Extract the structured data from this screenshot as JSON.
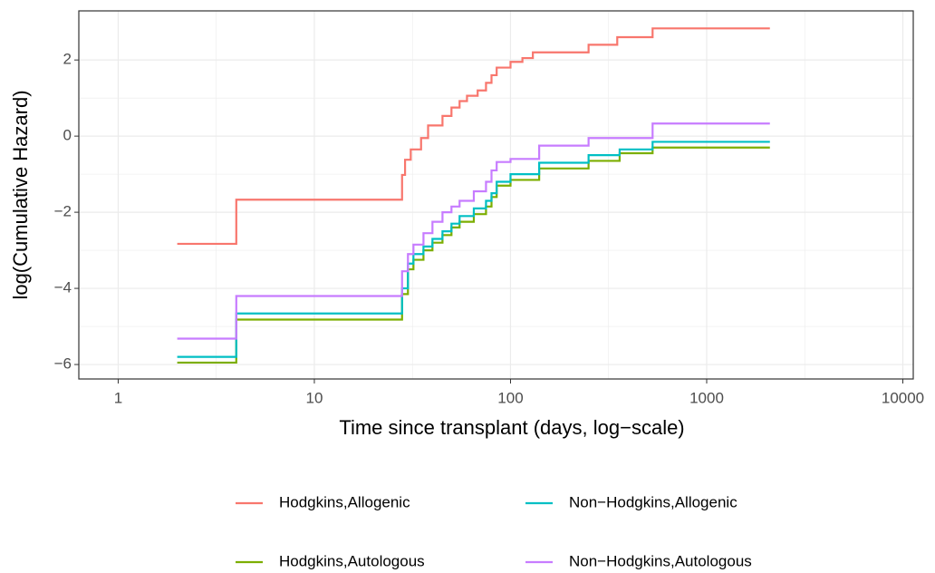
{
  "chart_data": {
    "type": "step",
    "x_label": "Time since transplant (days, log−scale)",
    "y_label": "log(Cumulative Hazard)",
    "xlog": true,
    "grid": true,
    "legend_position": "bottom",
    "xlim": [
      0.63,
      11300
    ],
    "ylim": [
      -6.38,
      3.29
    ],
    "xticks": [
      1,
      10,
      100,
      1000,
      10000
    ],
    "yticks": [
      {
        "value": -6,
        "label": "−6"
      },
      {
        "value": -4,
        "label": "−4"
      },
      {
        "value": -2,
        "label": "−2"
      },
      0,
      2
    ],
    "series": [
      {
        "name": "Hodgkins,Allogenic",
        "color": "#F8766D",
        "x": [
          2,
          4,
          28,
          29,
          31,
          35,
          38,
          45,
          50,
          55,
          60,
          68,
          75,
          80,
          85,
          100,
          115,
          130,
          250,
          350,
          530,
          2100
        ],
        "values": [
          -2.83,
          -1.67,
          -1.02,
          -0.62,
          -0.35,
          -0.05,
          0.28,
          0.53,
          0.75,
          0.92,
          1.06,
          1.2,
          1.4,
          1.6,
          1.8,
          1.95,
          2.05,
          2.2,
          2.4,
          2.6,
          2.83,
          2.83
        ]
      },
      {
        "name": "Hodgkins,Autologous",
        "color": "#7CAE00",
        "x": [
          2,
          4,
          28,
          30,
          32,
          36,
          40,
          45,
          50,
          55,
          65,
          75,
          80,
          85,
          100,
          140,
          250,
          360,
          530,
          2100
        ],
        "values": [
          -5.95,
          -4.82,
          -4.15,
          -3.5,
          -3.25,
          -3.0,
          -2.8,
          -2.6,
          -2.4,
          -2.25,
          -2.05,
          -1.85,
          -1.6,
          -1.3,
          -1.15,
          -0.85,
          -0.65,
          -0.45,
          -0.3,
          -0.3
        ]
      },
      {
        "name": "Non−Hodgkins,Allogenic",
        "color": "#00BFC4",
        "x": [
          2,
          4,
          28,
          30,
          32,
          36,
          40,
          45,
          50,
          55,
          65,
          75,
          80,
          85,
          100,
          140,
          250,
          360,
          530,
          2100
        ],
        "values": [
          -5.8,
          -4.66,
          -4.0,
          -3.35,
          -3.1,
          -2.9,
          -2.7,
          -2.5,
          -2.3,
          -2.1,
          -1.9,
          -1.7,
          -1.5,
          -1.2,
          -1.0,
          -0.7,
          -0.5,
          -0.35,
          -0.15,
          -0.15
        ]
      },
      {
        "name": "Non−Hodgkins,Autologous",
        "color": "#C77CFF",
        "x": [
          2,
          4,
          28,
          30,
          32,
          36,
          40,
          45,
          50,
          55,
          65,
          75,
          80,
          85,
          100,
          140,
          250,
          530,
          2100
        ],
        "values": [
          -5.32,
          -4.2,
          -3.55,
          -3.1,
          -2.85,
          -2.55,
          -2.25,
          -2.0,
          -1.85,
          -1.7,
          -1.45,
          -1.2,
          -0.9,
          -0.68,
          -0.6,
          -0.25,
          -0.05,
          0.33,
          0.33
        ]
      }
    ]
  }
}
